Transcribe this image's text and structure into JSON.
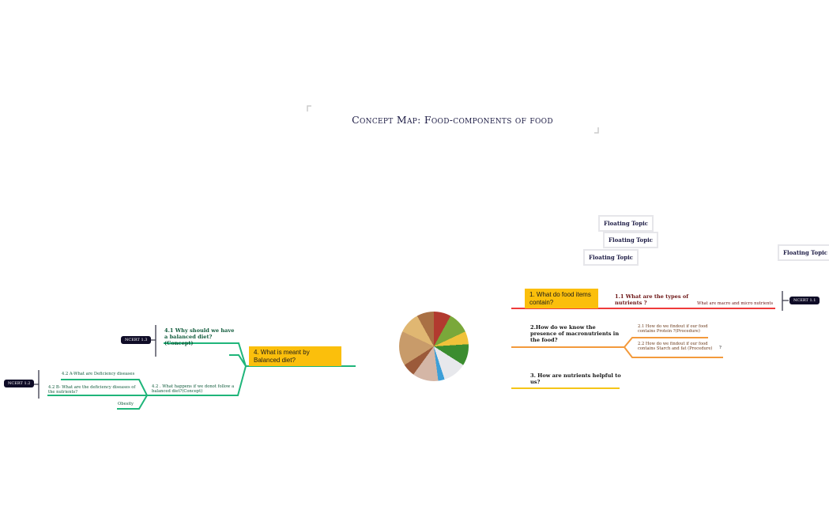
{
  "title": "Concept Map: Food-components of food",
  "floating_topics": [
    "Floating Topic",
    "Floating Topic",
    "Floating Topic",
    "Floating Topic"
  ],
  "center_image": "food-plate-image",
  "right_branches": {
    "b1": {
      "label": "1. What do  food items contain?",
      "child": "1.1 What are the types of nutrients ?",
      "note": "What are macro and micro nutrients",
      "badge": "NCERT 1.1",
      "color": "#ef3b3b"
    },
    "b2": {
      "label": "2.How do we know the presence of macronutrients in the food?",
      "child1": "2.1 How do we findout  if our food contains Protein ?(Procedure)",
      "child2": "2.2 How do we findout  if our food contains Starch and fat (Procedure)",
      "child2_mark": "?",
      "color": "#f39a3c"
    },
    "b3": {
      "label": "3. How are nutrients helpful to us?",
      "color": "#f5c518"
    }
  },
  "left_branch": {
    "label": "4. What is meant by Balanced diet?",
    "color": "#1fb57a",
    "child1": "4.1 Why should we have a balanced diet?(Concept)",
    "badge1": "NCERT 1.3",
    "child2": "4.2 . What happens if we donot follow a balanced diet?(Concept)",
    "child2a": "4.2 A-What are Deficiency diseases",
    "child2b": "4.2 B- What are the deficiency diseases of the nutrients?",
    "child2c": "Obesity",
    "badge2": "NCERT 1.2"
  }
}
